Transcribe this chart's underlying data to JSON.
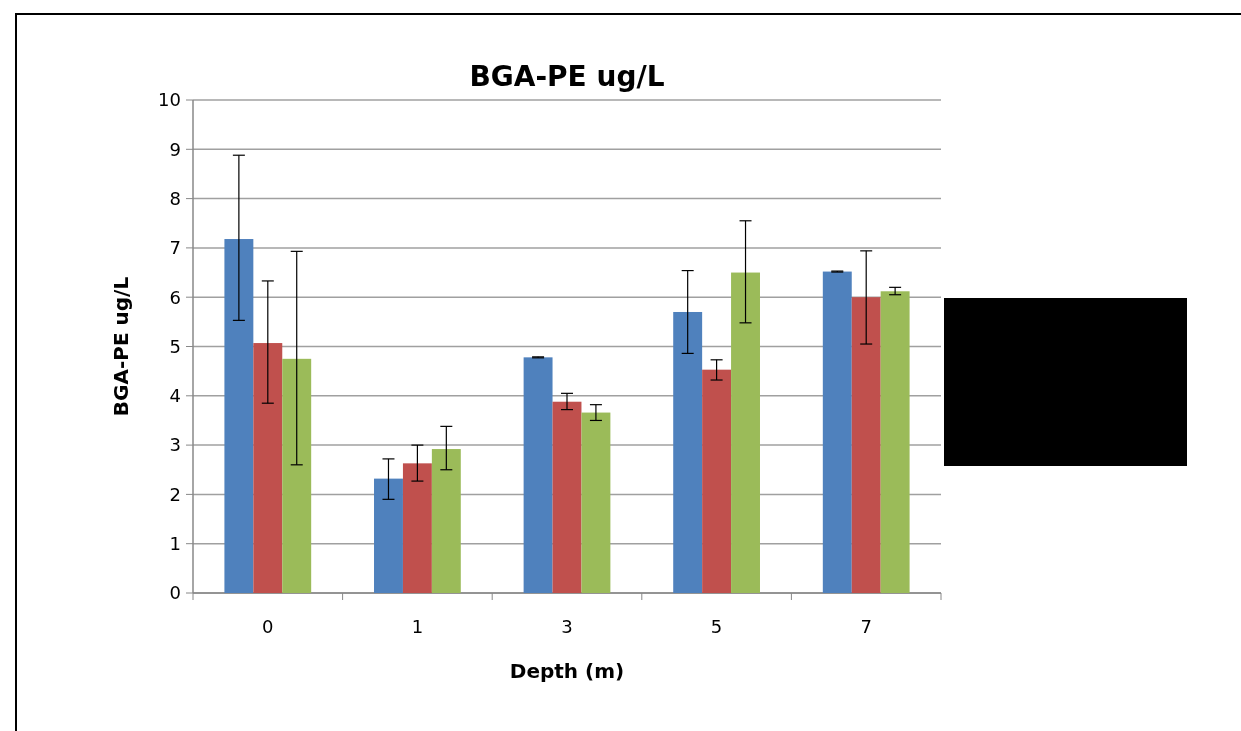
{
  "chart_data": {
    "type": "bar",
    "title": "BGA-PE ug/L",
    "xlabel": "Depth (m)",
    "ylabel": "BGA-PE ug/L",
    "categories": [
      "0",
      "1",
      "3",
      "5",
      "7"
    ],
    "series": [
      {
        "color": "#4f81bd",
        "values": [
          7.18,
          2.32,
          4.78,
          5.7,
          6.52
        ],
        "errors": [
          [
            5.53,
            8.88
          ],
          [
            1.9,
            2.72
          ],
          0.01,
          [
            4.86,
            6.54
          ],
          0.01
        ]
      },
      {
        "color": "#c0504d",
        "values": [
          5.07,
          2.63,
          3.88,
          4.53,
          6.0
        ],
        "errors": [
          [
            3.85,
            6.33
          ],
          [
            2.27,
            3.0
          ],
          [
            3.72,
            4.05
          ],
          [
            4.32,
            4.73
          ],
          [
            5.05,
            6.94
          ]
        ]
      },
      {
        "color": "#9bbb59",
        "values": [
          4.75,
          2.92,
          3.66,
          6.5,
          6.12
        ],
        "errors": [
          [
            2.6,
            6.93
          ],
          [
            2.5,
            3.38
          ],
          [
            3.5,
            3.82
          ],
          [
            5.48,
            7.55
          ],
          [
            6.05,
            6.2
          ]
        ]
      }
    ],
    "ylim": [
      0,
      10
    ],
    "yticks": [
      0,
      1,
      2,
      3,
      4,
      5,
      6,
      7,
      8,
      9,
      10
    ],
    "grid": "y"
  }
}
